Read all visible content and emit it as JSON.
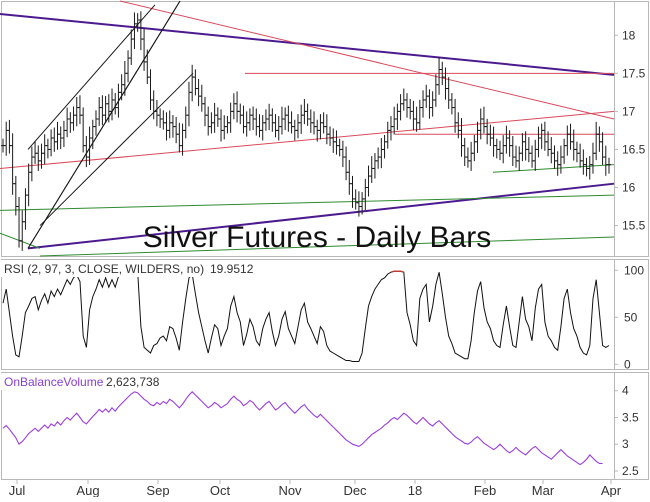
{
  "colors": {
    "background": "#ffffff",
    "frame": "#b8b8b8",
    "bars": "#1a1a1a",
    "trend_purple": "#4b1a8f",
    "trend_red": "#d94a5a",
    "trend_green": "#2e8b2e",
    "channel_black": "#1a1a1a",
    "rsi_line": "#111111",
    "rsi_overbought": "#c0392b",
    "obv_line": "#9b3fe0",
    "obv_label": "#8a3fd0",
    "axis_text": "#333333"
  },
  "chart_data": [
    {
      "type": "ohlc",
      "title": "Silver Futures - Daily Bars",
      "series_name": "Silver Futures",
      "ylim": [
        15.1,
        18.45
      ],
      "y_ticks": [
        "15.5",
        "16",
        "16.5",
        "17",
        "17.5",
        "18"
      ],
      "x_ticks": [
        "Jul",
        "Aug",
        "Sep",
        "Oct",
        "Nov",
        "Dec",
        "18",
        "Feb",
        "Mar",
        "Apr"
      ],
      "bar_count": 190,
      "closes": [
        16.55,
        16.75,
        16.55,
        16.05,
        15.75,
        15.3,
        15.55,
        15.9,
        16.2,
        16.4,
        16.45,
        16.35,
        16.45,
        16.55,
        16.5,
        16.65,
        16.6,
        16.7,
        16.65,
        16.75,
        16.9,
        16.85,
        16.95,
        17.05,
        16.95,
        16.55,
        16.4,
        16.65,
        16.8,
        16.9,
        17.05,
        16.95,
        17.1,
        17.0,
        17.15,
        17.05,
        17.25,
        17.35,
        17.5,
        17.7,
        17.95,
        18.15,
        18.2,
        17.95,
        17.65,
        17.45,
        17.15,
        17.0,
        16.95,
        16.9,
        16.85,
        16.75,
        16.85,
        16.8,
        16.7,
        16.55,
        16.75,
        16.95,
        17.25,
        17.45,
        17.3,
        17.2,
        17.1,
        16.95,
        16.8,
        16.85,
        16.95,
        16.9,
        16.75,
        16.8,
        16.85,
        17.0,
        17.1,
        17.0,
        16.95,
        16.8,
        16.85,
        16.95,
        16.9,
        16.8,
        16.75,
        16.85,
        16.9,
        16.95,
        16.85,
        16.75,
        16.8,
        16.9,
        16.95,
        16.85,
        16.8,
        16.75,
        16.85,
        16.95,
        17.0,
        16.9,
        16.85,
        16.8,
        16.75,
        16.85,
        16.8,
        16.7,
        16.65,
        16.6,
        16.55,
        16.5,
        16.4,
        16.2,
        16.05,
        15.85,
        15.8,
        15.75,
        15.85,
        16.0,
        16.15,
        16.25,
        16.35,
        16.4,
        16.5,
        16.6,
        16.75,
        16.8,
        16.9,
        17.0,
        17.1,
        17.15,
        17.05,
        17.0,
        16.9,
        16.85,
        17.05,
        17.15,
        17.2,
        17.05,
        17.15,
        17.35,
        17.55,
        17.45,
        17.3,
        17.15,
        17.05,
        16.85,
        16.75,
        16.55,
        16.4,
        16.35,
        16.45,
        16.6,
        16.75,
        16.9,
        16.8,
        16.7,
        16.65,
        16.55,
        16.5,
        16.45,
        16.55,
        16.65,
        16.55,
        16.4,
        16.35,
        16.45,
        16.6,
        16.5,
        16.45,
        16.35,
        16.5,
        16.65,
        16.75,
        16.6,
        16.5,
        16.45,
        16.35,
        16.3,
        16.4,
        16.55,
        16.7,
        16.6,
        16.5,
        16.45,
        16.35,
        16.3,
        16.25,
        16.3,
        16.45,
        16.7,
        16.6,
        16.4,
        16.3,
        16.3
      ]
    },
    {
      "type": "line",
      "label": "RSI (2, 97, 3, CLOSE, WILDERS, no)",
      "value_label": "19.9512",
      "ylim": [
        -5,
        112
      ],
      "y_ticks": [
        "100",
        "50",
        "0"
      ],
      "overbought_level": 97,
      "values": [
        65,
        80,
        55,
        30,
        10,
        8,
        30,
        55,
        62,
        70,
        72,
        58,
        68,
        75,
        65,
        78,
        72,
        80,
        74,
        82,
        90,
        85,
        92,
        95,
        88,
        30,
        18,
        58,
        72,
        80,
        90,
        82,
        92,
        82,
        90,
        82,
        93,
        95,
        98,
        99,
        99,
        99,
        98,
        40,
        18,
        15,
        12,
        20,
        22,
        28,
        30,
        25,
        40,
        38,
        28,
        15,
        45,
        70,
        92,
        96,
        75,
        55,
        40,
        25,
        12,
        28,
        42,
        38,
        20,
        30,
        38,
        62,
        72,
        55,
        45,
        20,
        32,
        48,
        40,
        25,
        20,
        38,
        48,
        55,
        35,
        20,
        30,
        48,
        56,
        38,
        30,
        22,
        40,
        58,
        65,
        45,
        38,
        30,
        22,
        40,
        35,
        20,
        14,
        12,
        10,
        8,
        6,
        4,
        4,
        3,
        3,
        3,
        12,
        38,
        62,
        72,
        80,
        85,
        90,
        92,
        96,
        98,
        99,
        99,
        99,
        98,
        55,
        42,
        25,
        20,
        70,
        80,
        85,
        45,
        62,
        85,
        98,
        75,
        50,
        30,
        22,
        12,
        10,
        8,
        6,
        6,
        25,
        55,
        78,
        88,
        60,
        45,
        38,
        25,
        20,
        18,
        42,
        62,
        40,
        20,
        18,
        45,
        72,
        48,
        40,
        25,
        60,
        80,
        85,
        45,
        30,
        25,
        18,
        15,
        40,
        70,
        80,
        55,
        38,
        30,
        18,
        12,
        10,
        20,
        70,
        90,
        55,
        20,
        18,
        20
      ]
    },
    {
      "type": "line",
      "label": "OnBalanceVolume",
      "value_label": "2,623,738",
      "ylim": [
        2.35,
        4.35
      ],
      "y_ticks": [
        "4",
        "3.5",
        "3",
        "2.5"
      ],
      "values": [
        3.3,
        3.35,
        3.28,
        3.2,
        3.12,
        3.0,
        3.05,
        3.12,
        3.2,
        3.25,
        3.3,
        3.24,
        3.3,
        3.36,
        3.3,
        3.38,
        3.34,
        3.42,
        3.36,
        3.44,
        3.5,
        3.45,
        3.52,
        3.58,
        3.5,
        3.42,
        3.38,
        3.45,
        3.52,
        3.58,
        3.65,
        3.6,
        3.66,
        3.6,
        3.68,
        3.62,
        3.7,
        3.76,
        3.82,
        3.88,
        3.94,
        3.98,
        3.96,
        3.9,
        3.84,
        3.8,
        3.74,
        3.72,
        3.78,
        3.74,
        3.8,
        3.76,
        3.84,
        3.8,
        3.74,
        3.68,
        3.75,
        3.84,
        3.92,
        3.98,
        3.92,
        3.86,
        3.8,
        3.74,
        3.68,
        3.72,
        3.78,
        3.74,
        3.68,
        3.72,
        3.76,
        3.84,
        3.9,
        3.84,
        3.8,
        3.72,
        3.76,
        3.82,
        3.78,
        3.7,
        3.64,
        3.7,
        3.76,
        3.8,
        3.72,
        3.64,
        3.68,
        3.74,
        3.78,
        3.7,
        3.64,
        3.58,
        3.64,
        3.7,
        3.74,
        3.66,
        3.6,
        3.54,
        3.5,
        3.56,
        3.5,
        3.44,
        3.38,
        3.32,
        3.26,
        3.2,
        3.14,
        3.08,
        3.04,
        3.0,
        2.98,
        2.96,
        3.0,
        3.06,
        3.12,
        3.18,
        3.22,
        3.26,
        3.3,
        3.36,
        3.4,
        3.46,
        3.5,
        3.46,
        3.52,
        3.58,
        3.54,
        3.48,
        3.42,
        3.38,
        3.44,
        3.5,
        3.44,
        3.38,
        3.34,
        3.4,
        3.44,
        3.38,
        3.32,
        3.26,
        3.2,
        3.14,
        3.1,
        3.06,
        3.02,
        3.0,
        3.04,
        3.1,
        3.14,
        3.08,
        3.02,
        2.98,
        2.94,
        2.9,
        2.94,
        3.0,
        2.94,
        2.88,
        2.84,
        2.88,
        2.94,
        2.88,
        2.84,
        2.8,
        2.86,
        2.92,
        2.96,
        2.9,
        2.84,
        2.8,
        2.76,
        2.72,
        2.78,
        2.84,
        2.9,
        2.84,
        2.78,
        2.74,
        2.7,
        2.66,
        2.62,
        2.66,
        2.72,
        2.8,
        2.74,
        2.68,
        2.64,
        2.64
      ]
    }
  ]
}
